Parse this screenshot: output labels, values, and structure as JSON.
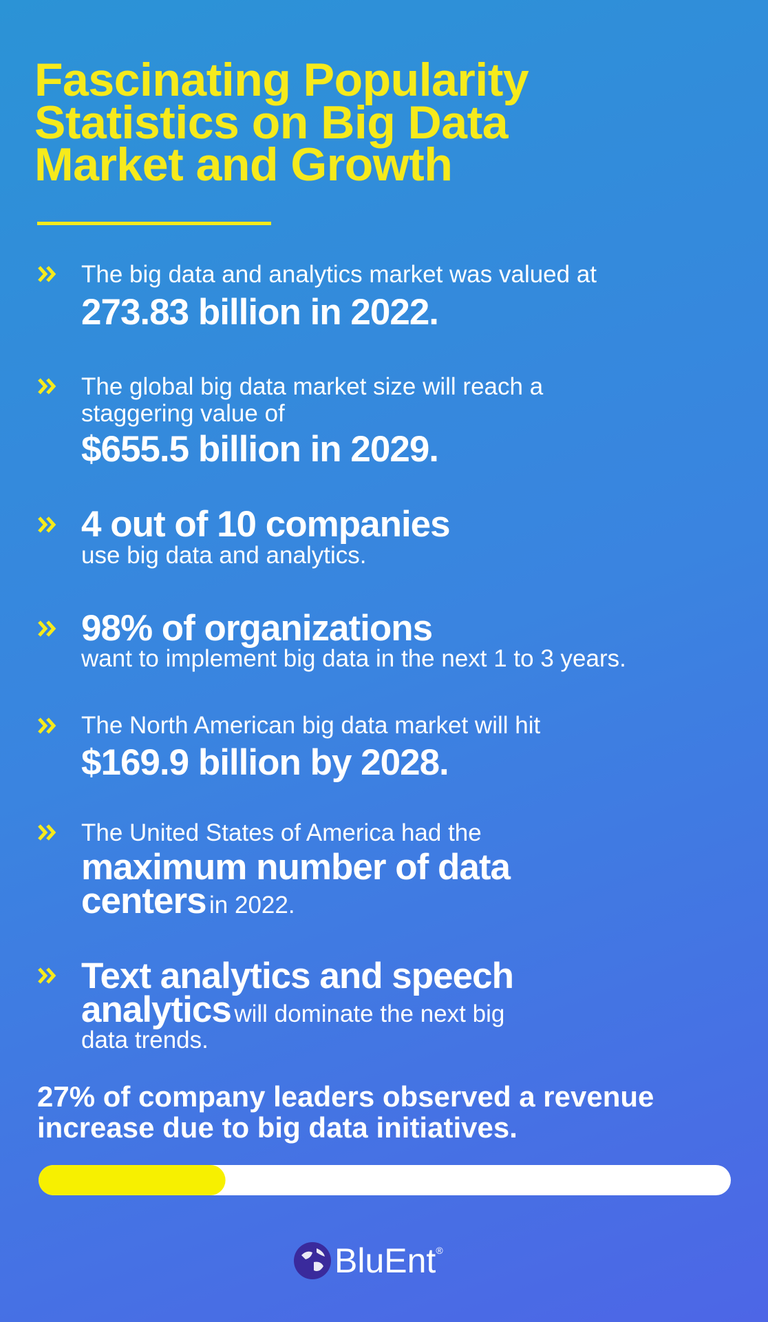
{
  "title": [
    "Fascinating Popularity",
    "Statistics on Big Data",
    "Market and Growth"
  ],
  "items": [
    {
      "parts": [
        "The big data and analytics market was valued at",
        "273.83 billion in 2022."
      ]
    },
    {
      "parts": [
        "The global big data market size will reach a",
        "staggering value of",
        "$655.5 billion in 2029."
      ]
    },
    {
      "parts": [
        "4 out of 10 companies",
        "use big data and analytics."
      ]
    },
    {
      "parts": [
        "98% of organizations",
        "want to implement big data in the next 1 to 3 years."
      ]
    },
    {
      "parts": [
        "The North American big data market will hit",
        "$169.9 billion by 2028."
      ]
    },
    {
      "parts": [
        "The United States of America had the",
        "maximum number of data",
        "centers",
        "in 2022."
      ]
    },
    {
      "parts": [
        "Text analytics and speech",
        "analytics",
        "will dominate the next big",
        "data trends."
      ]
    }
  ],
  "highlight": {
    "lines": [
      "27% of company leaders observed a revenue",
      "increase due to big data initiatives."
    ],
    "progress": {
      "value": 27,
      "range": [
        0,
        100
      ]
    }
  },
  "logo": {
    "name": "BluEnt",
    "mark": "®"
  }
}
